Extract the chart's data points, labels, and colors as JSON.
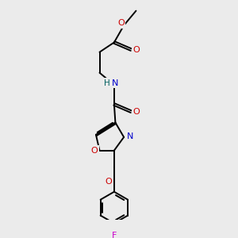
{
  "bg_color": "#ebebeb",
  "bond_color": "#000000",
  "N_color": "#0000cc",
  "O_color": "#cc0000",
  "F_color": "#cc00cc",
  "H_color": "#006060",
  "lw": 1.4,
  "figsize": [
    3.0,
    3.0
  ],
  "dpi": 100,
  "xlim": [
    -1.5,
    2.5
  ],
  "ylim": [
    -4.5,
    4.5
  ]
}
